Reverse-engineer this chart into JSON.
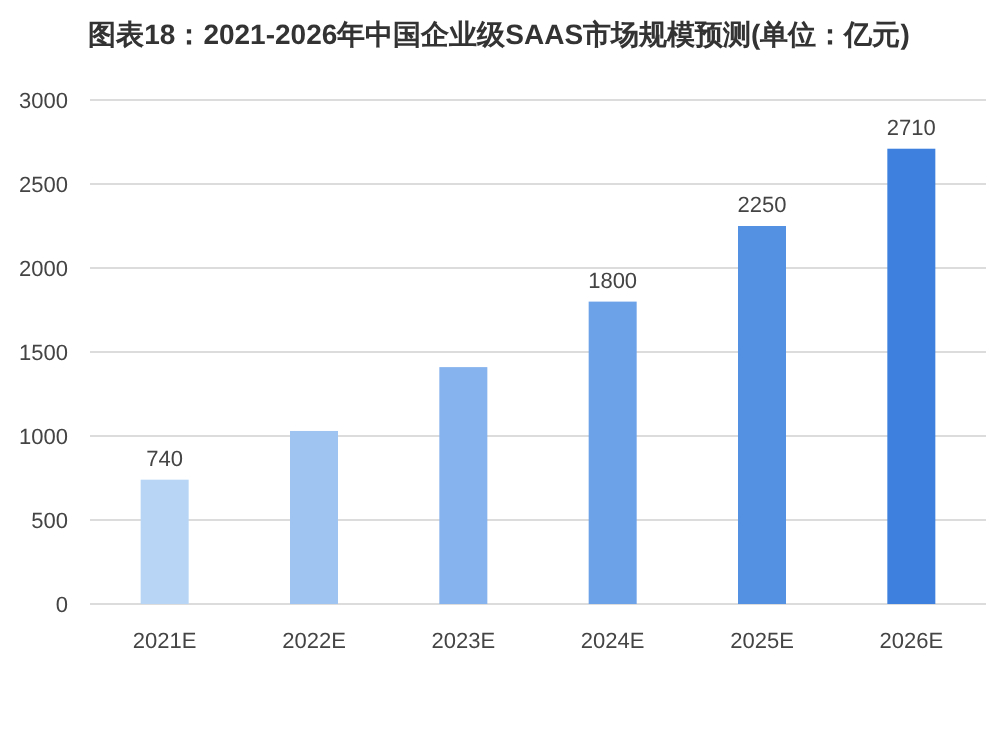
{
  "chart_data": {
    "type": "bar",
    "title": "图表18：2021-2026年中国企业级SAAS市场规模预测(单位：亿元)",
    "categories": [
      "2021E",
      "2022E",
      "2023E",
      "2024E",
      "2025E",
      "2026E"
    ],
    "values": [
      740,
      1030,
      1410,
      1800,
      2250,
      2710
    ],
    "colors": [
      "#b8d5f6",
      "#a0c4f2",
      "#86b2ed",
      "#6ca2e8",
      "#5591e3",
      "#3d80dd"
    ],
    "value_labels": [
      "740",
      null,
      null,
      "1800",
      "2250",
      "2710"
    ],
    "ylim": [
      0,
      3000
    ],
    "yticks": [
      0,
      500,
      1000,
      1500,
      2000,
      2500,
      3000
    ],
    "grid": "y"
  }
}
